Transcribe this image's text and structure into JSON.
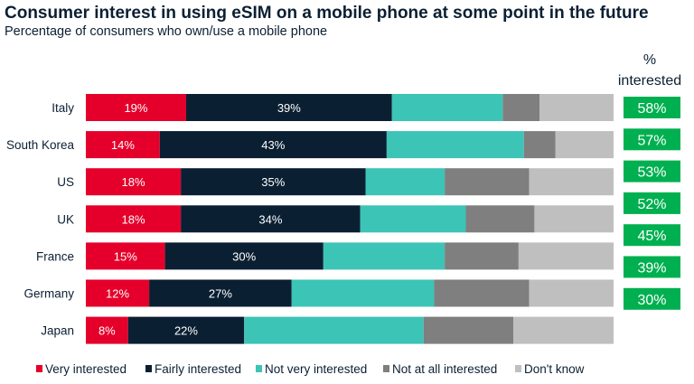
{
  "chart_data": {
    "type": "bar",
    "orientation": "horizontal",
    "stacked": true,
    "title": "Consumer interest in using eSIM on a mobile phone at some point in the future",
    "subtitle": "Percentage of consumers who own/use a mobile phone",
    "categories": [
      "Italy",
      "South Korea",
      "US",
      "UK",
      "France",
      "Germany",
      "Japan"
    ],
    "series": [
      {
        "name": "Very interested",
        "color": "#e4002b",
        "values": [
          19,
          14,
          18,
          18,
          15,
          12,
          8
        ]
      },
      {
        "name": "Fairly interested",
        "color": "#0b1f33",
        "values": [
          39,
          43,
          35,
          34,
          30,
          27,
          22
        ]
      },
      {
        "name": "Not very interested",
        "color": "#3cc4b6",
        "values": [
          21,
          26,
          15,
          20,
          23,
          27,
          34
        ]
      },
      {
        "name": "Not at all interested",
        "color": "#7f7f7f",
        "values": [
          7,
          6,
          16,
          13,
          14,
          18,
          17
        ]
      },
      {
        "name": "Don't know",
        "color": "#bfbfbf",
        "values": [
          14,
          11,
          16,
          15,
          18,
          16,
          19
        ]
      }
    ],
    "labeled_series": [
      0,
      1
    ],
    "xlim": [
      0,
      100
    ],
    "grid": false,
    "legend": "bottom",
    "interest_header": [
      "%",
      "interested"
    ],
    "interest_values": [
      "58%",
      "57%",
      "53%",
      "52%",
      "45%",
      "39%",
      "30%"
    ],
    "interest_color": "#00b050"
  }
}
